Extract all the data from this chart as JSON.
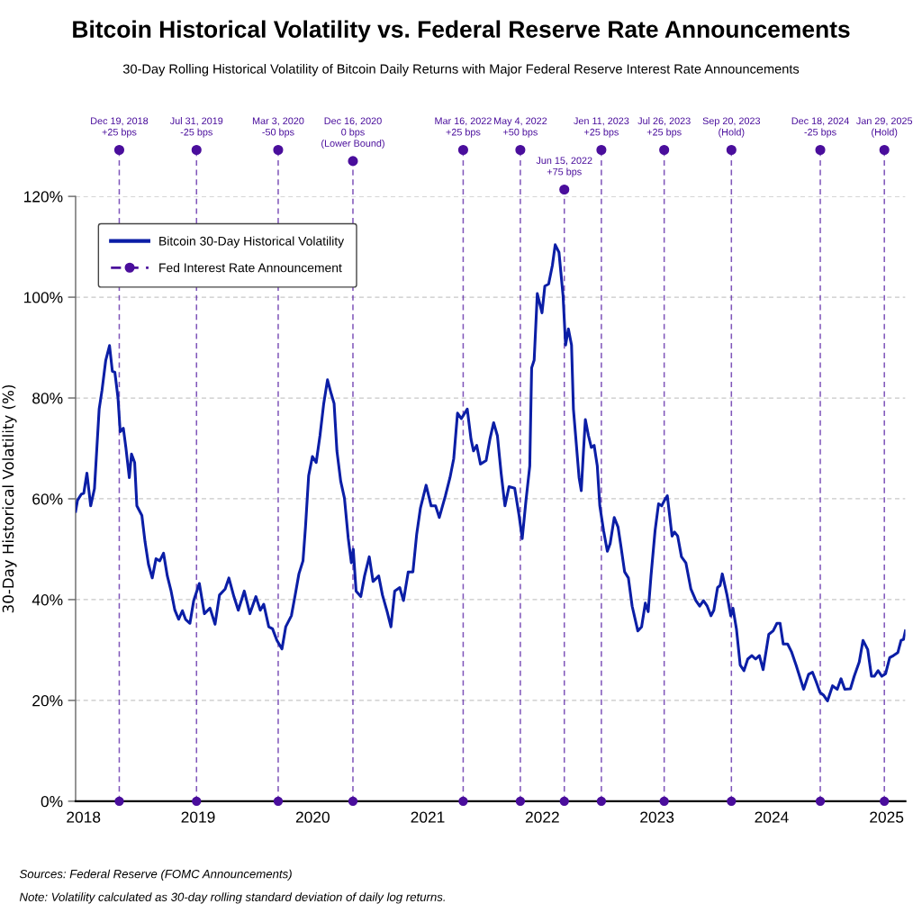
{
  "chart_data": {
    "type": "line",
    "title": "Bitcoin Historical Volatility vs. Federal Reserve Rate Announcements",
    "subtitle": "30-Day Rolling Historical Volatility of Bitcoin Daily Returns with Major Federal Reserve Interest Rate Announcements",
    "ylabel": "30-Day Historical Volatility (%)",
    "annotations": [
      "Sources: Federal Reserve (FOMC Announcements)",
      "Note: Volatility calculated as 30-day rolling standard deviation of daily log returns."
    ],
    "xlim": [
      "2017-12-07",
      "2025-03-02"
    ],
    "xticks": [
      {
        "value": "2018-01-01",
        "label": "2018"
      },
      {
        "value": "2019-01-01",
        "label": "2019"
      },
      {
        "value": "2020-01-01",
        "label": "2020"
      },
      {
        "value": "2021-01-01",
        "label": "2021"
      },
      {
        "value": "2022-01-01",
        "label": "2022"
      },
      {
        "value": "2023-01-01",
        "label": "2023"
      },
      {
        "value": "2024-01-01",
        "label": "2024"
      },
      {
        "value": "2025-01-01",
        "label": "2025"
      }
    ],
    "ylim": [
      0,
      120
    ],
    "yticks": [
      {
        "value": 0,
        "label": "0%"
      },
      {
        "value": 20,
        "label": "20%"
      },
      {
        "value": 40,
        "label": "40%"
      },
      {
        "value": 60,
        "label": "60%"
      },
      {
        "value": 80,
        "label": "80%"
      },
      {
        "value": 100,
        "label": "100%"
      },
      {
        "value": 120,
        "label": "120%"
      }
    ],
    "grid": "y",
    "legend": "top left",
    "series": [
      {
        "name": "Bitcoin 30-Day Historical Volatility",
        "color": "#0b1ea6",
        "x": [
          "2017-12-07",
          "2017-12-13",
          "2017-12-25",
          "2018-01-02",
          "2018-01-12",
          "2018-01-24",
          "2018-02-05",
          "2018-02-20",
          "2018-03-01",
          "2018-03-13",
          "2018-03-25",
          "2018-04-03",
          "2018-04-11",
          "2018-04-21",
          "2018-04-28",
          "2018-05-08",
          "2018-05-16",
          "2018-05-27",
          "2018-06-03",
          "2018-06-13",
          "2018-06-20",
          "2018-07-06",
          "2018-07-16",
          "2018-07-27",
          "2018-08-08",
          "2018-08-20",
          "2018-09-01",
          "2018-09-13",
          "2018-09-25",
          "2018-10-07",
          "2018-10-19",
          "2018-10-31",
          "2018-11-12",
          "2018-11-22",
          "2018-12-06",
          "2018-12-18",
          "2019-01-05",
          "2019-01-21",
          "2019-02-08",
          "2019-02-24",
          "2019-03-10",
          "2019-03-28",
          "2019-04-09",
          "2019-04-25",
          "2019-05-09",
          "2019-05-28",
          "2019-06-15",
          "2019-07-04",
          "2019-07-18",
          "2019-07-29",
          "2019-08-14",
          "2019-08-26",
          "2019-09-09",
          "2019-09-25",
          "2019-10-07",
          "2019-10-25",
          "2019-11-06",
          "2019-11-18",
          "2019-12-01",
          "2019-12-09",
          "2019-12-19",
          "2019-12-31",
          "2020-01-12",
          "2020-01-24",
          "2020-02-05",
          "2020-02-17",
          "2020-02-29",
          "2020-03-09",
          "2020-03-18",
          "2020-03-30",
          "2020-04-11",
          "2020-04-23",
          "2020-05-03",
          "2020-05-09",
          "2020-05-18",
          "2020-06-02",
          "2020-06-14",
          "2020-06-29",
          "2020-07-11",
          "2020-07-29",
          "2020-08-10",
          "2020-08-25",
          "2020-09-06",
          "2020-09-18",
          "2020-10-04",
          "2020-10-16",
          "2020-10-31",
          "2020-11-15",
          "2020-11-27",
          "2020-12-09",
          "2020-12-27",
          "2021-01-12",
          "2021-01-26",
          "2021-02-07",
          "2021-02-26",
          "2021-03-13",
          "2021-03-25",
          "2021-04-06",
          "2021-04-18",
          "2021-05-07",
          "2021-05-19",
          "2021-05-27",
          "2021-06-06",
          "2021-06-18",
          "2021-07-06",
          "2021-07-18",
          "2021-07-30",
          "2021-08-11",
          "2021-08-23",
          "2021-09-04",
          "2021-09-17",
          "2021-10-05",
          "2021-10-19",
          "2021-10-29",
          "2021-11-10",
          "2021-11-22",
          "2021-11-28",
          "2021-12-06",
          "2021-12-16",
          "2021-12-31",
          "2022-01-09",
          "2022-01-21",
          "2022-02-02",
          "2022-02-11",
          "2022-02-23",
          "2022-03-08",
          "2022-03-16",
          "2022-03-25",
          "2022-04-04",
          "2022-04-10",
          "2022-04-19",
          "2022-04-28",
          "2022-05-05",
          "2022-05-12",
          "2022-05-18",
          "2022-05-28",
          "2022-06-06",
          "2022-06-15",
          "2022-06-25",
          "2022-07-03",
          "2022-07-15",
          "2022-07-27",
          "2022-08-05",
          "2022-08-18",
          "2022-08-30",
          "2022-09-08",
          "2022-09-20",
          "2022-10-02",
          "2022-10-14",
          "2022-11-01",
          "2022-11-13",
          "2022-11-25",
          "2022-12-04",
          "2022-12-13",
          "2022-12-26",
          "2023-01-06",
          "2023-01-16",
          "2023-01-25",
          "2023-02-03",
          "2023-02-18",
          "2023-02-26",
          "2023-03-08",
          "2023-03-20",
          "2023-04-03",
          "2023-04-19",
          "2023-05-05",
          "2023-05-17",
          "2023-05-29",
          "2023-06-10",
          "2023-06-22",
          "2023-07-01",
          "2023-07-13",
          "2023-07-21",
          "2023-07-28",
          "2023-08-12",
          "2023-08-24",
          "2023-08-31",
          "2023-09-11",
          "2023-09-23",
          "2023-10-05",
          "2023-10-17",
          "2023-10-30",
          "2023-11-11",
          "2023-11-23",
          "2023-12-05",
          "2023-12-23",
          "2024-01-06",
          "2024-01-18",
          "2024-01-28",
          "2024-02-07",
          "2024-02-21",
          "2024-03-04",
          "2024-03-19",
          "2024-03-28",
          "2024-04-12",
          "2024-04-28",
          "2024-05-10",
          "2024-05-22",
          "2024-06-03",
          "2024-06-15",
          "2024-06-27",
          "2024-07-13",
          "2024-07-28",
          "2024-08-09",
          "2024-08-21",
          "2024-09-08",
          "2024-09-20",
          "2024-10-06",
          "2024-10-18",
          "2024-11-02",
          "2024-11-14",
          "2024-11-23",
          "2024-12-05",
          "2024-12-17",
          "2024-12-29",
          "2025-01-11",
          "2025-01-23",
          "2025-02-06",
          "2025-02-16",
          "2025-02-24",
          "2025-03-02"
        ],
        "values": [
          57.5,
          59.7,
          60.9,
          61.1,
          65.1,
          58.6,
          62.0,
          77.8,
          81.5,
          87.5,
          90.4,
          85.3,
          85.1,
          80.0,
          73.3,
          74.0,
          70.2,
          64.2,
          68.9,
          67.2,
          58.6,
          56.7,
          51.5,
          47.0,
          44.3,
          48.1,
          47.7,
          49.2,
          44.7,
          41.7,
          37.9,
          36.1,
          37.8,
          36.1,
          35.3,
          39.8,
          43.2,
          37.2,
          38.3,
          35.1,
          40.9,
          42.1,
          44.3,
          40.6,
          37.9,
          41.7,
          37.2,
          40.6,
          37.9,
          39.1,
          34.6,
          34.2,
          31.9,
          30.2,
          34.6,
          36.8,
          40.9,
          45.1,
          47.7,
          54.5,
          64.6,
          68.4,
          67.2,
          72.5,
          78.9,
          83.6,
          80.8,
          78.9,
          69.5,
          63.5,
          60.1,
          52.2,
          47.3,
          50.0,
          41.7,
          40.6,
          44.7,
          48.5,
          43.6,
          44.7,
          40.9,
          37.6,
          34.6,
          41.7,
          42.4,
          39.8,
          45.5,
          45.5,
          53.0,
          58.2,
          62.7,
          58.6,
          58.6,
          56.3,
          60.5,
          64.2,
          68.0,
          77.0,
          75.9,
          77.8,
          71.8,
          69.5,
          70.6,
          66.9,
          67.6,
          71.8,
          75.1,
          72.5,
          65.0,
          58.6,
          62.4,
          62.1,
          56.7,
          52.1,
          59.7,
          66.5,
          86.0,
          87.5,
          100.7,
          96.9,
          102.2,
          102.6,
          106.3,
          110.4,
          108.9,
          100.3,
          90.5,
          93.7,
          90.5,
          77.8,
          71.0,
          64.2,
          61.6,
          69.5,
          75.7,
          72.5,
          70.2,
          70.6,
          66.5,
          58.6,
          53.7,
          49.6,
          51.1,
          56.3,
          54.4,
          50.7,
          45.5,
          44.3,
          38.7,
          33.8,
          34.6,
          39.3,
          37.6,
          44.7,
          53.7,
          59.0,
          58.6,
          59.7,
          60.6,
          52.6,
          53.4,
          52.6,
          48.5,
          47.3,
          42.1,
          39.8,
          38.7,
          39.8,
          38.7,
          36.8,
          37.9,
          42.4,
          42.8,
          45.1,
          40.9,
          36.8,
          38.3,
          34.2,
          27.0,
          25.9,
          28.2,
          28.9,
          28.2,
          28.9,
          26.1,
          33.1,
          33.8,
          35.3,
          35.3,
          31.2,
          31.2,
          29.7,
          27.0,
          25.2,
          22.2,
          25.2,
          25.6,
          23.7,
          21.6,
          21.0,
          19.9,
          22.9,
          22.2,
          24.3,
          22.2,
          22.3,
          24.8,
          27.6,
          31.9,
          30.1,
          24.8,
          24.8,
          25.9,
          24.8,
          25.3,
          28.5,
          28.9,
          29.5,
          31.9,
          32.1,
          33.8
        ]
      },
      {
        "name": "Fed Interest Rate Announcement",
        "type": "scatter",
        "color": "#4a0e9c",
        "marker": "circle",
        "line_style": "dashed",
        "x": [
          "2018-04-25",
          "2018-12-27",
          "2019-09-13",
          "2020-05-08",
          "2021-04-24",
          "2021-10-23",
          "2022-03-12",
          "2022-07-08",
          "2023-01-24",
          "2023-08-26",
          "2024-06-04",
          "2024-12-25"
        ],
        "values": [
          0,
          0,
          0,
          0,
          0,
          0,
          0,
          0,
          0,
          0,
          0,
          0
        ]
      }
    ],
    "ref_lines": [
      {
        "axis": "x",
        "value": "2018-04-25",
        "label": "Dec 19, 2018\n+25 bps",
        "color": "#4a0e9c",
        "line_style": "dashed"
      },
      {
        "axis": "x",
        "value": "2018-12-27",
        "label": "Jul 31, 2019\n-25 bps",
        "color": "#4a0e9c",
        "line_style": "dashed"
      },
      {
        "axis": "x",
        "value": "2019-09-13",
        "label": "Mar 3, 2020\n-50 bps",
        "color": "#4a0e9c",
        "line_style": "dashed"
      },
      {
        "axis": "x",
        "value": "2020-05-08",
        "label": "Dec 16, 2020\n0 bps\n(Lower Bound)",
        "color": "#4a0e9c",
        "line_style": "dashed"
      },
      {
        "axis": "x",
        "value": "2021-04-24",
        "label": "Mar 16, 2022\n+25 bps",
        "color": "#4a0e9c",
        "line_style": "dashed"
      },
      {
        "axis": "x",
        "value": "2021-10-23",
        "label": "May 4, 2022\n+50 bps",
        "color": "#4a0e9c",
        "line_style": "dashed"
      },
      {
        "axis": "x",
        "value": "2022-03-12",
        "label": "Jun 15, 2022\n+75 bps",
        "color": "#4a0e9c",
        "line_style": "dashed"
      },
      {
        "axis": "x",
        "value": "2022-07-08",
        "label": "Jen 11, 2023\n+25 bps",
        "color": "#4a0e9c",
        "line_style": "dashed"
      },
      {
        "axis": "x",
        "value": "2023-01-24",
        "label": "Jul 26, 2023\n+25 bps",
        "color": "#4a0e9c",
        "line_style": "dashed"
      },
      {
        "axis": "x",
        "value": "2023-08-26",
        "label": "Sep 20, 2023\n(Hold)",
        "color": "#4a0e9c",
        "line_style": "dashed"
      },
      {
        "axis": "x",
        "value": "2024-06-04",
        "label": "Dec 18, 2024\n-25 bps",
        "color": "#4a0e9c",
        "line_style": "dashed"
      },
      {
        "axis": "x",
        "value": "2024-12-25",
        "label": "Jan 29, 2025\n(Hold)",
        "color": "#4a0e9c",
        "line_style": "dashed"
      }
    ]
  }
}
